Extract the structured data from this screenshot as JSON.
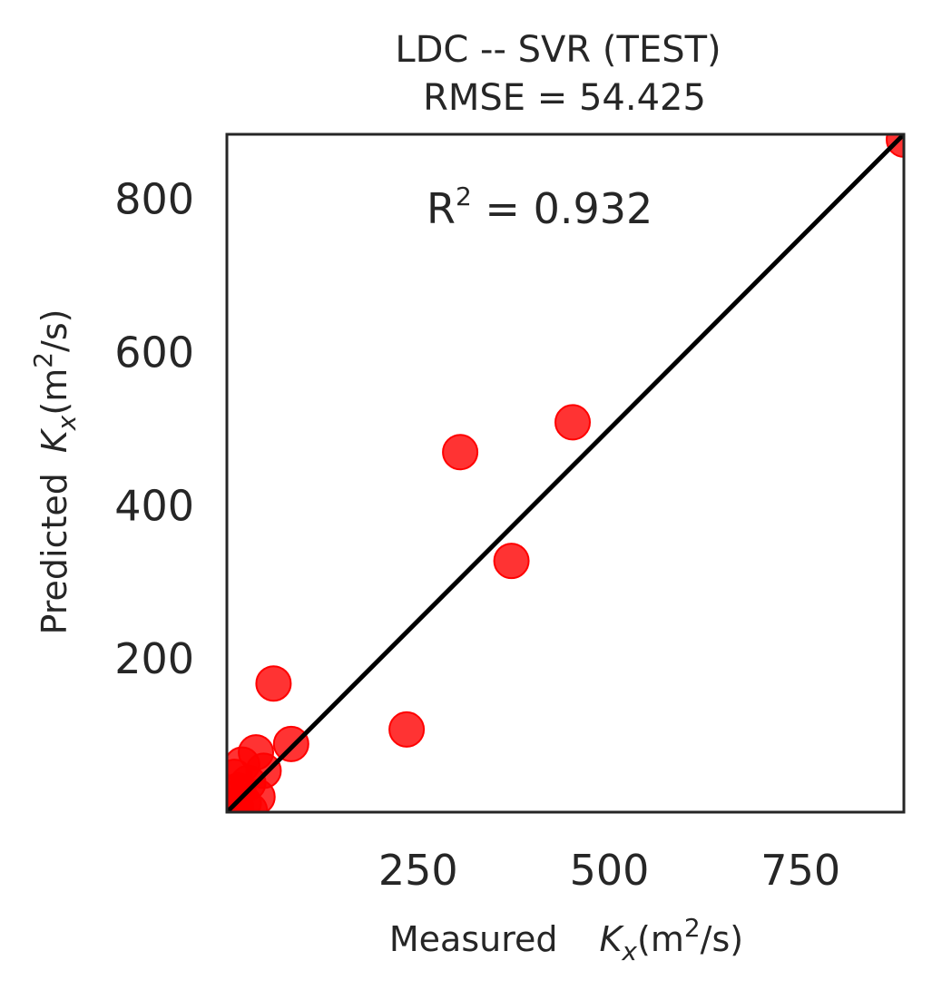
{
  "chart_data": {
    "type": "scatter",
    "title": "LDC -- SVR (TEST)",
    "subtitle": "RMSE = 54.425",
    "annotation": {
      "prefix": "R",
      "superscript": "2",
      "value_text": " = 0.932"
    },
    "xlabel": {
      "prefix": "Measured",
      "symbol": "K",
      "symbol_sub": "x",
      "unit_open": "(m",
      "unit_sup": "2",
      "unit_close": "/s)"
    },
    "ylabel": {
      "prefix": "Predicted",
      "symbol": "K",
      "symbol_sub": "x",
      "unit_open": "(m",
      "unit_sup": "2",
      "unit_close": "/s)"
    },
    "xlim": [
      0,
      885
    ],
    "ylim": [
      0,
      885
    ],
    "xticks": [
      250,
      500,
      750
    ],
    "xtick_labels": [
      "250",
      "500",
      "750"
    ],
    "yticks": [
      200,
      400,
      600,
      800
    ],
    "ytick_labels": [
      "200",
      "400",
      "600",
      "800"
    ],
    "grid": false,
    "reference_line": {
      "from": [
        0,
        0
      ],
      "to": [
        885,
        885
      ],
      "color": "#000000"
    },
    "marker_color": "#ff0000",
    "x": [
      885,
      452,
      305,
      372,
      235,
      61,
      84,
      38,
      48,
      20,
      10,
      28,
      15,
      5,
      40,
      22,
      12,
      8,
      30,
      3
    ],
    "y": [
      878,
      509,
      470,
      328,
      108,
      168,
      89,
      78,
      54,
      62,
      46,
      38,
      28,
      22,
      20,
      12,
      6,
      4,
      2,
      8
    ]
  }
}
